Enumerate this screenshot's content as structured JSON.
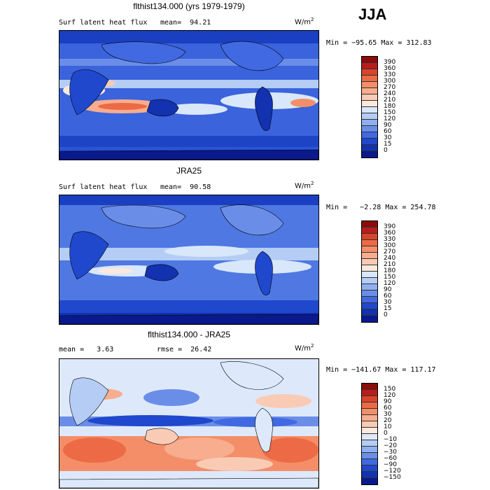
{
  "season": "JJA",
  "units_main": "W/m",
  "units_sup": "2",
  "panels": [
    {
      "title": "flthist134.000 (yrs 1979-1979)",
      "left_label": "Surf latent heat flux",
      "mid_label": "mean=  94.21",
      "minmax": "Min = −95.65 Max = 312.83",
      "levels": [
        "390",
        "360",
        "330",
        "300",
        "270",
        "240",
        "210",
        "180",
        "150",
        "120",
        "90",
        "60",
        "30",
        "15",
        "0"
      ],
      "colors": [
        "#8c0b0b",
        "#b81c1c",
        "#d8442a",
        "#ec6a45",
        "#f48e68",
        "#f7ad8e",
        "#f9cbb4",
        "#fbe9dd",
        "#d9e7fa",
        "#b5cdf5",
        "#8fb0ef",
        "#6a8ee8",
        "#4169e1",
        "#2048cd",
        "#1232b0",
        "#0a1a8c"
      ]
    },
    {
      "title": "JRA25",
      "left_label": "Surf latent heat flux",
      "mid_label": "mean=  90.58",
      "minmax": "Min =   −2.28 Max = 254.78",
      "levels": [
        "390",
        "360",
        "330",
        "300",
        "270",
        "240",
        "210",
        "180",
        "150",
        "120",
        "90",
        "60",
        "30",
        "15",
        "0"
      ],
      "colors": [
        "#8c0b0b",
        "#b81c1c",
        "#d8442a",
        "#ec6a45",
        "#f48e68",
        "#f7ad8e",
        "#f9cbb4",
        "#fbe9dd",
        "#d9e7fa",
        "#b5cdf5",
        "#8fb0ef",
        "#6a8ee8",
        "#4169e1",
        "#2048cd",
        "#1232b0",
        "#0a1a8c"
      ]
    },
    {
      "title": "flthist134.000 - JRA25",
      "left_label": "mean =   3.63",
      "mid_label": "rmse =  26.42",
      "minmax": "Min = −141.67 Max = 117.17",
      "levels": [
        "150",
        "120",
        "90",
        "60",
        "30",
        "20",
        "10",
        "0",
        "−10",
        "−20",
        "−30",
        "−60",
        "−90",
        "−120",
        "−150"
      ],
      "colors": [
        "#8c0b0b",
        "#b81c1c",
        "#d8442a",
        "#ec6a45",
        "#f48e68",
        "#f7ad8e",
        "#f9cbb4",
        "#fbe9dd",
        "#dde9fb",
        "#b5cdf5",
        "#8fb0ef",
        "#6a8ee8",
        "#4169e1",
        "#2048cd",
        "#1232b0",
        "#0a1a8c"
      ]
    }
  ],
  "chart_data": [
    {
      "type": "heatmap",
      "title": "flthist134.000 (yrs 1979-1979)",
      "variable": "Surf latent heat flux",
      "units": "W/m2",
      "mean": 94.21,
      "min": -95.65,
      "max": 312.83,
      "contour_levels": [
        0,
        15,
        30,
        60,
        90,
        120,
        150,
        180,
        210,
        240,
        270,
        300,
        330,
        360,
        390
      ]
    },
    {
      "type": "heatmap",
      "title": "JRA25",
      "variable": "Surf latent heat flux",
      "units": "W/m2",
      "mean": 90.58,
      "min": -2.28,
      "max": 254.78,
      "contour_levels": [
        0,
        15,
        30,
        60,
        90,
        120,
        150,
        180,
        210,
        240,
        270,
        300,
        330,
        360,
        390
      ]
    },
    {
      "type": "heatmap",
      "title": "flthist134.000 - JRA25",
      "units": "W/m2",
      "mean": 3.63,
      "rmse": 26.42,
      "min": -141.67,
      "max": 117.17,
      "contour_levels": [
        -150,
        -120,
        -90,
        -60,
        -30,
        -20,
        -10,
        0,
        10,
        20,
        30,
        60,
        90,
        120,
        150
      ]
    }
  ]
}
